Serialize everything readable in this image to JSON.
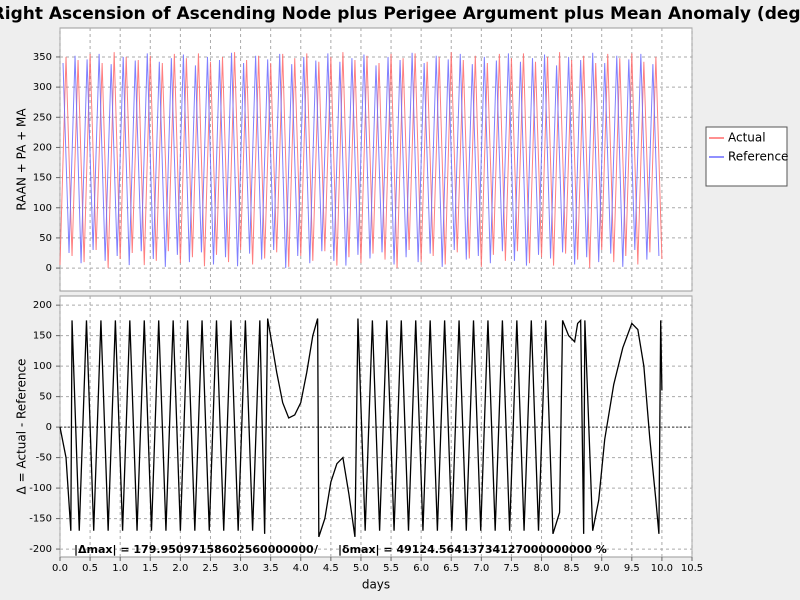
{
  "chart_data": [
    {
      "type": "line",
      "title": "Right Ascension of Ascending Node plus Perigee Argument plus Mean Anomaly (deg)",
      "ylabel": "RAAN + PA + MA",
      "grid": true,
      "legend": "right",
      "xlim": [
        0,
        10.5
      ],
      "xticks": [
        0,
        0.5,
        1,
        1.5,
        2,
        2.5,
        3,
        3.5,
        4,
        4.5,
        5,
        5.5,
        6,
        6.5,
        7,
        7.5,
        8,
        8.5,
        9,
        9.5,
        10,
        10.5
      ],
      "ylim": [
        -38,
        398
      ],
      "yticks": [
        0,
        50,
        100,
        150,
        200,
        250,
        300,
        350
      ],
      "series": [
        {
          "name": "Actual",
          "color": "#ff6a6a",
          "x": [
            0,
            0.1,
            0.2,
            0.3,
            0.4,
            0.5,
            0.6,
            0.7,
            0.8,
            0.9,
            1,
            1.1,
            1.2,
            1.3,
            1.4,
            1.5,
            1.6,
            1.7,
            1.8,
            1.9,
            2,
            2.1,
            2.2,
            2.3,
            2.4,
            2.5,
            2.6,
            2.7,
            2.8,
            2.9,
            3,
            3.1,
            3.2,
            3.3,
            3.4,
            3.5,
            3.6,
            3.7,
            3.8,
            3.9,
            4,
            4.1,
            4.2,
            4.3,
            4.4,
            4.5,
            4.6,
            4.7,
            4.8,
            4.9,
            5,
            5.1,
            5.2,
            5.3,
            5.4,
            5.5,
            5.6,
            5.7,
            5.8,
            5.9,
            6,
            6.1,
            6.2,
            6.3,
            6.4,
            6.5,
            6.6,
            6.7,
            6.8,
            6.9,
            7,
            7.1,
            7.2,
            7.3,
            7.4,
            7.5,
            7.6,
            7.7,
            7.8,
            7.9,
            8,
            8.1,
            8.2,
            8.3,
            8.4,
            8.5,
            8.6,
            8.7,
            8.8,
            8.9,
            9,
            9.1,
            9.2,
            9.3,
            9.4,
            9.5,
            9.6,
            9.7,
            9.8,
            9.9,
            10
          ],
          "values": [
            5,
            350,
            20,
            345,
            10,
            355,
            30,
            340,
            0,
            358,
            15,
            350,
            25,
            345,
            5,
            352,
            12,
            340,
            28,
            355,
            8,
            348,
            18,
            356,
            3,
            342,
            22,
            350,
            10,
            358,
            30,
            345,
            6,
            352,
            16,
            340,
            26,
            355,
            2,
            348,
            20,
            356,
            12,
            342,
            28,
            350,
            4,
            358,
            18,
            345,
            8,
            352,
            24,
            340,
            14,
            355,
            0,
            348,
            30,
            356,
            10,
            342,
            20,
            350,
            6,
            358,
            26,
            345,
            16,
            352,
            2,
            340,
            22,
            355,
            12,
            348,
            28,
            356,
            8,
            342,
            18,
            350,
            4,
            358,
            24,
            345,
            14,
            352,
            0,
            340,
            30,
            355,
            10,
            348,
            20,
            356,
            6,
            342,
            26,
            350,
            15
          ]
        },
        {
          "name": "Reference",
          "color": "#6a6aff",
          "x": [
            0.05,
            0.15,
            0.25,
            0.35,
            0.45,
            0.55,
            0.65,
            0.75,
            0.85,
            0.95,
            1.05,
            1.15,
            1.25,
            1.35,
            1.45,
            1.55,
            1.65,
            1.75,
            1.85,
            1.95,
            2.05,
            2.15,
            2.25,
            2.35,
            2.45,
            2.55,
            2.65,
            2.75,
            2.85,
            2.95,
            3.05,
            3.15,
            3.25,
            3.35,
            3.45,
            3.55,
            3.65,
            3.75,
            3.85,
            3.95,
            4.05,
            4.15,
            4.25,
            4.35,
            4.45,
            4.55,
            4.65,
            4.75,
            4.85,
            4.95,
            5.05,
            5.15,
            5.25,
            5.35,
            5.45,
            5.55,
            5.65,
            5.75,
            5.85,
            5.95,
            6.05,
            6.15,
            6.25,
            6.35,
            6.45,
            6.55,
            6.65,
            6.75,
            6.85,
            6.95,
            7.05,
            7.15,
            7.25,
            7.35,
            7.45,
            7.55,
            7.65,
            7.75,
            7.85,
            7.95,
            8.05,
            8.15,
            8.25,
            8.35,
            8.45,
            8.55,
            8.65,
            8.75,
            8.85,
            8.95,
            9.05,
            9.15,
            9.25,
            9.35,
            9.45,
            9.55,
            9.65,
            9.75,
            9.85,
            9.95
          ],
          "values": [
            340,
            25,
            352,
            8,
            346,
            30,
            355,
            12,
            338,
            20,
            350,
            5,
            344,
            28,
            356,
            15,
            342,
            2,
            348,
            22,
            354,
            10,
            336,
            26,
            350,
            6,
            345,
            18,
            357,
            3,
            340,
            24,
            352,
            14,
            346,
            30,
            355,
            0,
            338,
            20,
            350,
            8,
            344,
            28,
            356,
            12,
            342,
            4,
            348,
            22,
            354,
            16,
            336,
            26,
            350,
            6,
            345,
            18,
            357,
            10,
            340,
            24,
            352,
            2,
            346,
            30,
            355,
            14,
            338,
            20,
            350,
            8,
            344,
            28,
            356,
            12,
            342,
            4,
            348,
            22,
            354,
            16,
            336,
            26,
            350,
            6,
            345,
            18,
            357,
            10,
            340,
            24,
            352,
            2,
            346,
            30,
            355,
            14,
            338,
            20
          ]
        }
      ]
    },
    {
      "type": "line",
      "ylabel": "Δ = Actual - Reference",
      "xlabel": "days",
      "grid": true,
      "hline": 0,
      "annotations": [
        "|Δmax| = 179.95097158602560000000",
        "/",
        "|δmax| = 49124.56413734127000000000 %"
      ],
      "xlim": [
        0,
        10.5
      ],
      "xticks": [
        {
          "value": 0,
          "label": "0.0"
        },
        0.5,
        {
          "value": 1,
          "label": "1.0"
        },
        1.5,
        {
          "value": 2,
          "label": "2.0"
        },
        2.5,
        {
          "value": 3,
          "label": "3.0"
        },
        3.5,
        {
          "value": 4,
          "label": "4.0"
        },
        4.5,
        {
          "value": 5,
          "label": "5.0"
        },
        5.5,
        {
          "value": 6,
          "label": "6.0"
        },
        6.5,
        {
          "value": 7,
          "label": "7.0"
        },
        7.5,
        {
          "value": 8,
          "label": "8.0"
        },
        8.5,
        {
          "value": 9,
          "label": "9.0"
        },
        9.5,
        {
          "value": 10,
          "label": "10.0"
        },
        10.5
      ],
      "ylim": [
        -213,
        215
      ],
      "yticks": [
        -200,
        -150,
        -100,
        -50,
        0,
        50,
        100,
        150,
        200
      ],
      "series": [
        {
          "color": "#000000",
          "x": [
            0,
            0.1,
            0.18,
            0.2,
            0.32,
            0.44,
            0.56,
            0.68,
            0.8,
            0.92,
            1.04,
            1.16,
            1.28,
            1.4,
            1.52,
            1.64,
            1.76,
            1.88,
            2,
            2.12,
            2.24,
            2.36,
            2.48,
            2.6,
            2.72,
            2.84,
            2.96,
            3.08,
            3.2,
            3.32,
            3.4,
            3.45,
            3.6,
            3.7,
            3.8,
            3.9,
            4,
            4.1,
            4.2,
            4.28,
            4.3,
            4.4,
            4.5,
            4.6,
            4.7,
            4.8,
            4.9,
            4.95,
            5.07,
            5.19,
            5.31,
            5.43,
            5.55,
            5.67,
            5.79,
            5.91,
            6.03,
            6.15,
            6.27,
            6.39,
            6.51,
            6.63,
            6.75,
            6.87,
            6.99,
            7.11,
            7.23,
            7.35,
            7.47,
            7.59,
            7.71,
            7.83,
            7.95,
            8.07,
            8.19,
            8.3,
            8.35,
            8.45,
            8.55,
            8.6,
            8.65,
            8.7,
            8.72,
            8.85,
            8.95,
            9.05,
            9.2,
            9.35,
            9.5,
            9.6,
            9.7,
            9.8,
            9.9,
            9.95,
            9.98,
            10
          ],
          "values": [
            0,
            -50,
            -170,
            175,
            -170,
            175,
            -170,
            175,
            -170,
            175,
            -170,
            175,
            -170,
            175,
            -170,
            175,
            -170,
            175,
            -170,
            175,
            -170,
            175,
            -170,
            175,
            -170,
            175,
            -170,
            175,
            -170,
            175,
            -175,
            178,
            90,
            40,
            15,
            20,
            40,
            90,
            150,
            178,
            -180,
            -150,
            -90,
            -60,
            -50,
            -110,
            -180,
            178,
            -170,
            175,
            -170,
            175,
            -170,
            175,
            -170,
            175,
            -170,
            175,
            -170,
            175,
            -170,
            175,
            -170,
            175,
            -170,
            175,
            -170,
            175,
            -170,
            175,
            -170,
            175,
            -170,
            175,
            -175,
            -140,
            175,
            150,
            140,
            170,
            175,
            -175,
            175,
            -170,
            -120,
            -20,
            70,
            130,
            170,
            160,
            100,
            -20,
            -120,
            -175,
            175,
            60
          ]
        }
      ]
    }
  ]
}
